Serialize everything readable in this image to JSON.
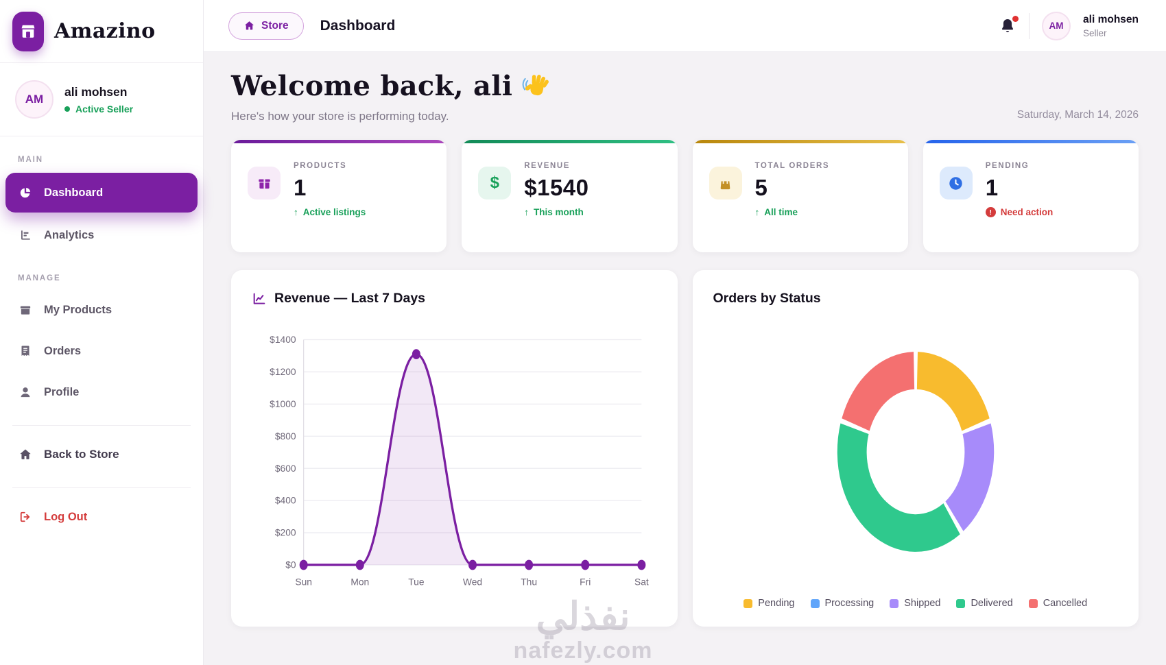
{
  "brand": {
    "name": "Amazino"
  },
  "colors": {
    "primary": "#7b1fa2",
    "green": "#18a059",
    "red": "#d43c3c",
    "gold": "#c8961e",
    "blue": "#3b79ec"
  },
  "sidebar": {
    "user": {
      "initials": "AM",
      "name": "ali mohsen",
      "status": "Active Seller"
    },
    "sections": [
      {
        "label": "MAIN",
        "items": [
          {
            "label": "Dashboard",
            "active": true
          },
          {
            "label": "Analytics"
          }
        ]
      },
      {
        "label": "MANAGE",
        "items": [
          {
            "label": "My Products"
          },
          {
            "label": "Orders"
          },
          {
            "label": "Profile"
          }
        ]
      }
    ],
    "back_to_store": "Back to Store",
    "log_out": "Log Out"
  },
  "topbar": {
    "store_button": "Store",
    "page_title": "Dashboard",
    "user": {
      "initials": "AM",
      "name": "ali mohsen",
      "role": "Seller"
    }
  },
  "welcome": {
    "title": "Welcome back, ali",
    "subtitle": "Here's how your store is performing today.",
    "date": "Saturday, March 14, 2026"
  },
  "stats": [
    {
      "label": "PRODUCTS",
      "value": "1",
      "note": "Active listings",
      "note_icon": "↑",
      "note_color": "#18a059",
      "accent": "#6a1b9a",
      "accent2": "#ab47bc",
      "icon_bg": "#f7ebf8",
      "icon_color": "#8e24aa"
    },
    {
      "label": "REVENUE",
      "value": "$1540",
      "note": "This month",
      "note_icon": "↑",
      "note_color": "#18a059",
      "accent": "#128a57",
      "accent2": "#2fbf83",
      "icon_bg": "#e6f6ee",
      "icon_color": "#18a059"
    },
    {
      "label": "TOTAL ORDERS",
      "value": "5",
      "note": "All time",
      "note_icon": "↑",
      "note_color": "#18a059",
      "accent": "#b8860b",
      "accent2": "#e8c04a",
      "icon_bg": "#fbf3dc",
      "icon_color": "#c39027"
    },
    {
      "label": "PENDING",
      "value": "1",
      "note": "Need action",
      "note_icon": "!",
      "note_color": "#d43c3c",
      "accent": "#2563eb",
      "accent2": "#6ba0f5",
      "icon_bg": "#ddeafc",
      "icon_color": "#2f6fe4"
    }
  ],
  "chart_data": [
    {
      "type": "line",
      "title": "Revenue — Last 7 Days",
      "x": [
        "Sun",
        "Mon",
        "Tue",
        "Wed",
        "Thu",
        "Fri",
        "Sat"
      ],
      "values": [
        0,
        0,
        1310,
        0,
        0,
        0,
        0
      ],
      "ylim": [
        0,
        1400
      ],
      "ytick_step": 200,
      "yticks": [
        "$1400",
        "$1200",
        "$1000",
        "$800",
        "$600",
        "$400",
        "$200",
        "$0"
      ],
      "grid": true,
      "legend_position": "none",
      "line_color": "#7b1fa2",
      "fill_color": "rgba(123,31,162,0.10)"
    },
    {
      "type": "donut",
      "title": "Orders by Status",
      "labels": [
        "Pending",
        "Processing",
        "Shipped",
        "Delivered",
        "Cancelled"
      ],
      "values": [
        1,
        0,
        1,
        2,
        1
      ],
      "colors": [
        "#f8bb2e",
        "#60a5fa",
        "#a78bfa",
        "#2fc98d",
        "#f47070"
      ],
      "legend_position": "bottom"
    }
  ],
  "watermark": {
    "line1": "نفذلي",
    "line2": "nafezly.com"
  }
}
